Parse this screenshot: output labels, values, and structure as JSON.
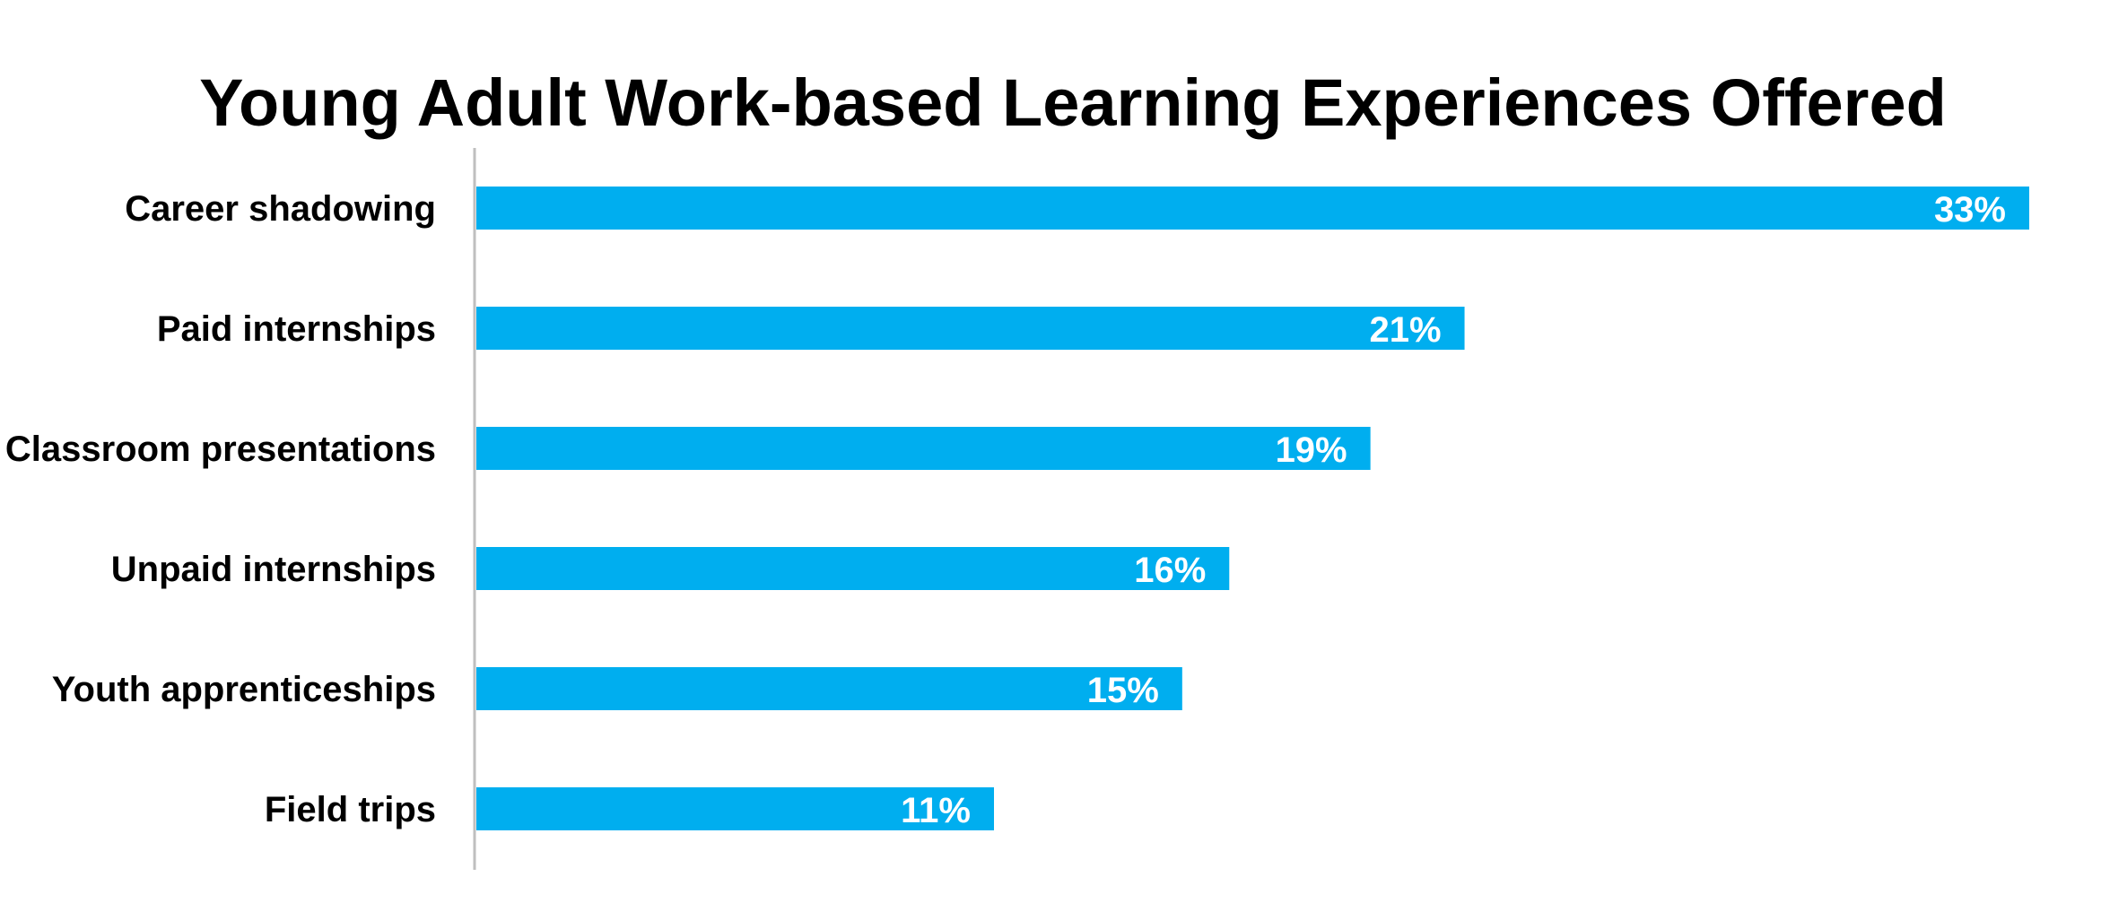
{
  "chart_data": {
    "type": "bar",
    "orientation": "horizontal",
    "title": "Young Adult Work-based Learning Experiences Offered",
    "categories": [
      "Career shadowing",
      "Paid internships",
      "Classroom presentations",
      "Unpaid internships",
      "Youth apprenticeships",
      "Field trips"
    ],
    "values": [
      33,
      21,
      19,
      16,
      15,
      11
    ],
    "value_labels": [
      "33%",
      "21%",
      "19%",
      "16%",
      "15%",
      "11%"
    ],
    "unit": "%",
    "xlim": [
      0,
      33
    ],
    "grid": false,
    "legend": "none",
    "colors": {
      "bar": "#00AEEF",
      "axis": "#BFBFBF",
      "category_text": "#000000",
      "value_text": "#FFFFFF",
      "title_text": "#000000"
    }
  }
}
